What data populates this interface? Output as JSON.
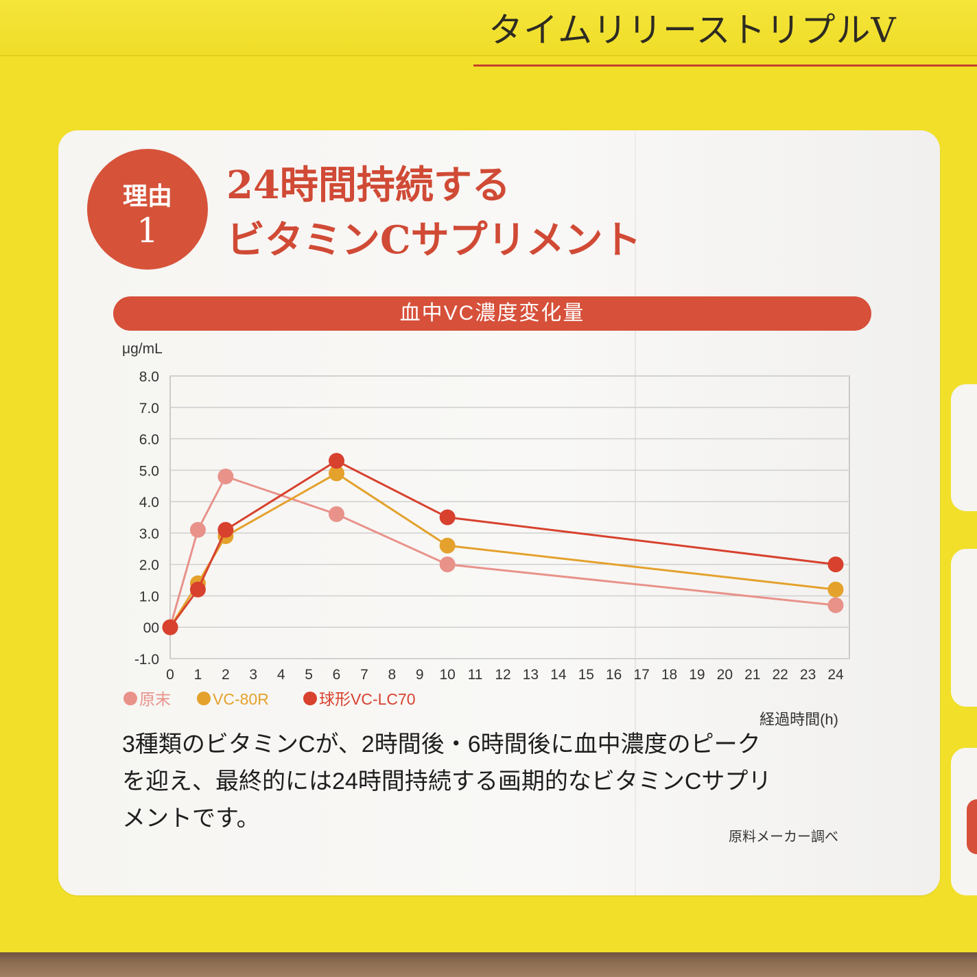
{
  "banner": {
    "title": "タイムリリーストリプルV"
  },
  "card": {
    "badge": {
      "label": "理由",
      "number": "1"
    },
    "heading": {
      "line1": "24時間持続する",
      "line2": "ビタミンCサプリメント"
    },
    "description_lines": [
      "3種類のビタミンCが、2時間後・6時間後に血中濃度のピーク",
      "を迎え、最終的には24時間持続する画期的なビタミンCサプリ",
      "メントです。"
    ],
    "source": "原料メーカー調べ"
  },
  "colors": {
    "background_yellow": "#f1df2a",
    "accent_red": "#d6503a",
    "heading_red": "#d04a35"
  },
  "chart_data": {
    "type": "line",
    "title": "血中VC濃度変化量",
    "ylabel": "μg/mL",
    "xlabel": "経過時間(h)",
    "xlim": [
      0,
      24
    ],
    "ylim": [
      -1.0,
      8.0
    ],
    "x_ticks": [
      0,
      1,
      2,
      3,
      4,
      5,
      6,
      7,
      8,
      9,
      10,
      11,
      12,
      13,
      14,
      15,
      16,
      17,
      18,
      19,
      20,
      21,
      22,
      23,
      24
    ],
    "y_ticks": [
      -1,
      0,
      1,
      2,
      3,
      4,
      5,
      6,
      7,
      8
    ],
    "y_tick_labels": [
      "-1.0",
      "00",
      "1.0",
      "2.0",
      "3.0",
      "4.0",
      "5.0",
      "6.0",
      "7.0",
      "8.0"
    ],
    "grid": true,
    "legend_position": "bottom-left",
    "series": [
      {
        "name": "原末",
        "color": "#e8928a",
        "x": [
          0,
          1,
          2,
          6,
          10,
          24
        ],
        "y": [
          0,
          3.1,
          4.8,
          3.6,
          2.0,
          0.7
        ]
      },
      {
        "name": "VC-80R",
        "color": "#e4a12c",
        "x": [
          0,
          1,
          2,
          6,
          10,
          24
        ],
        "y": [
          0,
          1.4,
          2.9,
          4.9,
          2.6,
          1.2
        ]
      },
      {
        "name": "球形VC-LC70",
        "color": "#d7412e",
        "x": [
          0,
          1,
          2,
          6,
          10,
          24
        ],
        "y": [
          0,
          1.2,
          3.1,
          5.3,
          3.5,
          2.0
        ]
      }
    ]
  }
}
